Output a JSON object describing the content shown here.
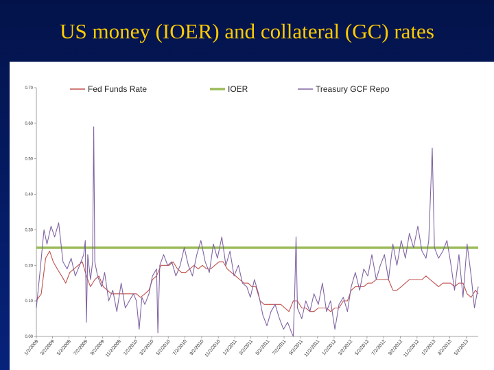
{
  "title": "US money (IOER) and collateral (GC) rates",
  "chart_data": {
    "type": "line",
    "title": "",
    "xlabel": "",
    "ylabel": "",
    "ylim": [
      0,
      0.7
    ],
    "yticks": [
      "0.00",
      "0.10",
      "0.20",
      "0.30",
      "0.40",
      "0.50",
      "0.60",
      "0.70"
    ],
    "x_ticks": [
      "1/2/2009",
      "3/2/2009",
      "5/2/2009",
      "7/2/2009",
      "9/2/2009",
      "11/2/2009",
      "1/2/2010",
      "3/2/2010",
      "5/2/2010",
      "7/2/2010",
      "9/2/2010",
      "11/2/2010",
      "1/2/2011",
      "3/2/2011",
      "5/2/2011",
      "7/2/2011",
      "9/2/2011",
      "11/2/2011",
      "1/2/2012",
      "3/2/2012",
      "5/2/2012",
      "7/2/2012",
      "9/2/2012",
      "11/2/2012",
      "1/2/2013",
      "3/2/2013",
      "5/2/2013"
    ],
    "x_range": [
      "1/2/2009",
      "6/15/2013"
    ],
    "legend": {
      "position": "top",
      "entries": [
        "Fed Funds Rate",
        "IOER",
        "Treasury GCF Repo"
      ]
    },
    "series": [
      {
        "name": "Fed Funds Rate",
        "color": "#c0504d",
        "points": [
          [
            "1/2/2009",
            0.1
          ],
          [
            "1/20/2009",
            0.12
          ],
          [
            "2/5/2009",
            0.22
          ],
          [
            "2/20/2009",
            0.24
          ],
          [
            "3/5/2009",
            0.21
          ],
          [
            "3/20/2009",
            0.19
          ],
          [
            "4/5/2009",
            0.17
          ],
          [
            "4/20/2009",
            0.15
          ],
          [
            "5/5/2009",
            0.18
          ],
          [
            "5/20/2009",
            0.19
          ],
          [
            "6/5/2009",
            0.2
          ],
          [
            "6/20/2009",
            0.21
          ],
          [
            "7/5/2009",
            0.17
          ],
          [
            "7/20/2009",
            0.14
          ],
          [
            "8/5/2009",
            0.16
          ],
          [
            "8/20/2009",
            0.17
          ],
          [
            "9/5/2009",
            0.14
          ],
          [
            "9/20/2009",
            0.13
          ],
          [
            "10/5/2009",
            0.12
          ],
          [
            "10/20/2009",
            0.12
          ],
          [
            "11/5/2009",
            0.12
          ],
          [
            "11/20/2009",
            0.12
          ],
          [
            "12/5/2009",
            0.12
          ],
          [
            "12/20/2009",
            0.12
          ],
          [
            "1/5/2010",
            0.12
          ],
          [
            "1/20/2010",
            0.11
          ],
          [
            "2/5/2010",
            0.12
          ],
          [
            "2/20/2010",
            0.13
          ],
          [
            "3/5/2010",
            0.16
          ],
          [
            "3/20/2010",
            0.17
          ],
          [
            "4/5/2010",
            0.2
          ],
          [
            "4/20/2010",
            0.2
          ],
          [
            "5/5/2010",
            0.2
          ],
          [
            "5/20/2010",
            0.21
          ],
          [
            "6/5/2010",
            0.19
          ],
          [
            "6/20/2010",
            0.18
          ],
          [
            "7/5/2010",
            0.18
          ],
          [
            "7/20/2010",
            0.19
          ],
          [
            "8/5/2010",
            0.2
          ],
          [
            "8/20/2010",
            0.19
          ],
          [
            "9/5/2010",
            0.2
          ],
          [
            "9/20/2010",
            0.19
          ],
          [
            "10/5/2010",
            0.19
          ],
          [
            "10/20/2010",
            0.2
          ],
          [
            "11/5/2010",
            0.21
          ],
          [
            "11/20/2010",
            0.21
          ],
          [
            "12/5/2010",
            0.19
          ],
          [
            "12/20/2010",
            0.18
          ],
          [
            "1/5/2011",
            0.17
          ],
          [
            "1/20/2011",
            0.16
          ],
          [
            "2/5/2011",
            0.15
          ],
          [
            "2/20/2011",
            0.15
          ],
          [
            "3/5/2011",
            0.14
          ],
          [
            "3/20/2011",
            0.14
          ],
          [
            "4/5/2011",
            0.1
          ],
          [
            "4/20/2011",
            0.09
          ],
          [
            "5/5/2011",
            0.09
          ],
          [
            "5/20/2011",
            0.09
          ],
          [
            "6/5/2011",
            0.09
          ],
          [
            "6/20/2011",
            0.09
          ],
          [
            "7/5/2011",
            0.08
          ],
          [
            "7/20/2011",
            0.07
          ],
          [
            "8/5/2011",
            0.1
          ],
          [
            "8/20/2011",
            0.1
          ],
          [
            "9/5/2011",
            0.08
          ],
          [
            "9/20/2011",
            0.08
          ],
          [
            "10/5/2011",
            0.07
          ],
          [
            "10/20/2011",
            0.07
          ],
          [
            "11/5/2011",
            0.08
          ],
          [
            "11/20/2011",
            0.08
          ],
          [
            "12/5/2011",
            0.08
          ],
          [
            "12/20/2011",
            0.07
          ],
          [
            "1/5/2012",
            0.08
          ],
          [
            "1/20/2012",
            0.08
          ],
          [
            "2/5/2012",
            0.1
          ],
          [
            "2/20/2012",
            0.1
          ],
          [
            "3/5/2012",
            0.13
          ],
          [
            "3/20/2012",
            0.14
          ],
          [
            "4/5/2012",
            0.14
          ],
          [
            "4/20/2012",
            0.14
          ],
          [
            "5/5/2012",
            0.15
          ],
          [
            "5/20/2012",
            0.15
          ],
          [
            "6/5/2012",
            0.16
          ],
          [
            "6/20/2012",
            0.16
          ],
          [
            "7/5/2012",
            0.16
          ],
          [
            "7/20/2012",
            0.16
          ],
          [
            "8/5/2012",
            0.13
          ],
          [
            "8/20/2012",
            0.13
          ],
          [
            "9/5/2012",
            0.14
          ],
          [
            "9/20/2012",
            0.15
          ],
          [
            "10/5/2012",
            0.16
          ],
          [
            "10/20/2012",
            0.16
          ],
          [
            "11/5/2012",
            0.16
          ],
          [
            "11/20/2012",
            0.16
          ],
          [
            "12/5/2012",
            0.17
          ],
          [
            "12/20/2012",
            0.16
          ],
          [
            "1/5/2013",
            0.15
          ],
          [
            "1/20/2013",
            0.14
          ],
          [
            "2/5/2013",
            0.15
          ],
          [
            "2/20/2013",
            0.15
          ],
          [
            "3/5/2013",
            0.15
          ],
          [
            "3/20/2013",
            0.14
          ],
          [
            "4/5/2013",
            0.15
          ],
          [
            "4/20/2013",
            0.15
          ],
          [
            "5/5/2013",
            0.12
          ],
          [
            "5/20/2013",
            0.11
          ],
          [
            "6/5/2013",
            0.13
          ],
          [
            "6/15/2013",
            0.12
          ]
        ]
      },
      {
        "name": "IOER",
        "color": "#9bbb59",
        "points": [
          [
            "1/2/2009",
            0.25
          ],
          [
            "6/15/2013",
            0.25
          ]
        ]
      },
      {
        "name": "Treasury GCF Repo",
        "color": "#8064a2",
        "points": [
          [
            "1/2/2009",
            0.08
          ],
          [
            "1/15/2009",
            0.18
          ],
          [
            "1/30/2009",
            0.3
          ],
          [
            "2/10/2009",
            0.26
          ],
          [
            "2/25/2009",
            0.31
          ],
          [
            "3/10/2009",
            0.28
          ],
          [
            "3/25/2009",
            0.32
          ],
          [
            "4/10/2009",
            0.21
          ],
          [
            "4/25/2009",
            0.19
          ],
          [
            "5/10/2009",
            0.22
          ],
          [
            "5/25/2009",
            0.17
          ],
          [
            "6/10/2009",
            0.2
          ],
          [
            "6/25/2009",
            0.23
          ],
          [
            "7/1/2009",
            0.27
          ],
          [
            "7/5/2009",
            0.04
          ],
          [
            "7/10/2009",
            0.23
          ],
          [
            "7/20/2009",
            0.16
          ],
          [
            "7/28/2009",
            0.21
          ],
          [
            "8/1/2009",
            0.59
          ],
          [
            "8/5/2009",
            0.21
          ],
          [
            "8/15/2009",
            0.17
          ],
          [
            "8/30/2009",
            0.14
          ],
          [
            "9/10/2009",
            0.18
          ],
          [
            "9/25/2009",
            0.1
          ],
          [
            "10/10/2009",
            0.13
          ],
          [
            "10/25/2009",
            0.07
          ],
          [
            "11/10/2009",
            0.15
          ],
          [
            "11/25/2009",
            0.08
          ],
          [
            "12/10/2009",
            0.1
          ],
          [
            "12/25/2009",
            0.12
          ],
          [
            "1/5/2010",
            0.1
          ],
          [
            "1/15/2010",
            0.02
          ],
          [
            "1/25/2010",
            0.11
          ],
          [
            "2/5/2010",
            0.09
          ],
          [
            "2/20/2010",
            0.12
          ],
          [
            "3/5/2010",
            0.17
          ],
          [
            "3/20/2010",
            0.19
          ],
          [
            "3/25/2010",
            0.01
          ],
          [
            "4/1/2010",
            0.2
          ],
          [
            "4/15/2010",
            0.23
          ],
          [
            "4/30/2010",
            0.2
          ],
          [
            "5/15/2010",
            0.21
          ],
          [
            "5/30/2010",
            0.17
          ],
          [
            "6/15/2010",
            0.2
          ],
          [
            "6/30/2010",
            0.25
          ],
          [
            "7/15/2010",
            0.2
          ],
          [
            "7/30/2010",
            0.17
          ],
          [
            "8/15/2010",
            0.23
          ],
          [
            "8/30/2010",
            0.27
          ],
          [
            "9/15/2010",
            0.21
          ],
          [
            "9/30/2010",
            0.18
          ],
          [
            "10/15/2010",
            0.26
          ],
          [
            "10/30/2010",
            0.22
          ],
          [
            "11/15/2010",
            0.28
          ],
          [
            "11/30/2010",
            0.2
          ],
          [
            "12/15/2010",
            0.24
          ],
          [
            "12/30/2010",
            0.17
          ],
          [
            "1/15/2011",
            0.2
          ],
          [
            "1/30/2011",
            0.15
          ],
          [
            "2/15/2011",
            0.14
          ],
          [
            "2/28/2011",
            0.11
          ],
          [
            "3/15/2011",
            0.16
          ],
          [
            "3/30/2011",
            0.12
          ],
          [
            "4/15/2011",
            0.06
          ],
          [
            "4/30/2011",
            0.03
          ],
          [
            "5/15/2011",
            0.07
          ],
          [
            "5/30/2011",
            0.09
          ],
          [
            "6/15/2011",
            0.05
          ],
          [
            "6/30/2011",
            0.02
          ],
          [
            "7/15/2011",
            0.04
          ],
          [
            "7/30/2011",
            0.01
          ],
          [
            "8/5/2011",
            0.0
          ],
          [
            "8/10/2011",
            0.12
          ],
          [
            "8/15/2011",
            0.28
          ],
          [
            "8/20/2011",
            0.08
          ],
          [
            "9/5/2011",
            0.05
          ],
          [
            "9/20/2011",
            0.1
          ],
          [
            "10/5/2011",
            0.07
          ],
          [
            "10/20/2011",
            0.12
          ],
          [
            "11/5/2011",
            0.09
          ],
          [
            "11/20/2011",
            0.15
          ],
          [
            "12/5/2011",
            0.07
          ],
          [
            "12/20/2011",
            0.1
          ],
          [
            "1/5/2012",
            0.02
          ],
          [
            "1/20/2012",
            0.09
          ],
          [
            "2/5/2012",
            0.11
          ],
          [
            "2/20/2012",
            0.07
          ],
          [
            "3/5/2012",
            0.14
          ],
          [
            "3/20/2012",
            0.18
          ],
          [
            "4/5/2012",
            0.13
          ],
          [
            "4/20/2012",
            0.19
          ],
          [
            "5/5/2012",
            0.17
          ],
          [
            "5/20/2012",
            0.23
          ],
          [
            "6/5/2012",
            0.16
          ],
          [
            "6/20/2012",
            0.2
          ],
          [
            "7/5/2012",
            0.23
          ],
          [
            "7/20/2012",
            0.16
          ],
          [
            "8/5/2012",
            0.26
          ],
          [
            "8/20/2012",
            0.2
          ],
          [
            "9/5/2012",
            0.27
          ],
          [
            "9/20/2012",
            0.22
          ],
          [
            "10/5/2012",
            0.29
          ],
          [
            "10/20/2012",
            0.25
          ],
          [
            "11/5/2012",
            0.31
          ],
          [
            "11/20/2012",
            0.24
          ],
          [
            "12/5/2012",
            0.22
          ],
          [
            "12/15/2012",
            0.27
          ],
          [
            "12/28/2012",
            0.53
          ],
          [
            "1/5/2013",
            0.25
          ],
          [
            "1/20/2013",
            0.22
          ],
          [
            "2/5/2013",
            0.24
          ],
          [
            "2/20/2013",
            0.27
          ],
          [
            "3/5/2013",
            0.21
          ],
          [
            "3/20/2013",
            0.13
          ],
          [
            "4/5/2013",
            0.23
          ],
          [
            "4/20/2013",
            0.11
          ],
          [
            "5/5/2013",
            0.26
          ],
          [
            "5/20/2013",
            0.17
          ],
          [
            "6/1/2013",
            0.08
          ],
          [
            "6/15/2013",
            0.14
          ]
        ]
      }
    ]
  }
}
